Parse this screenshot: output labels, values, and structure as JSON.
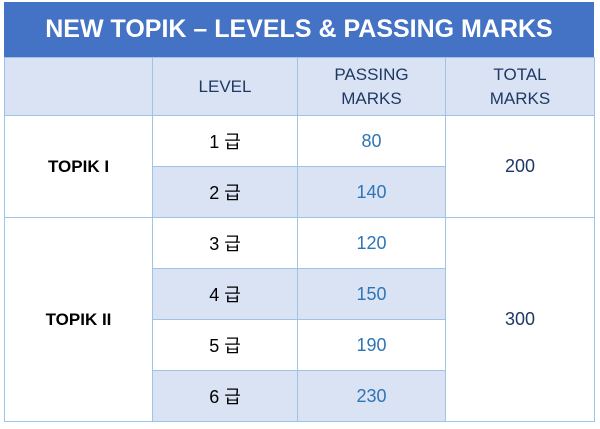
{
  "title": "NEW TOPIK – LEVELS & PASSING MARKS",
  "table": {
    "header": [
      "LEVEL",
      "PASSING MARKS",
      "TOTAL MARKS"
    ],
    "groups": [
      {
        "name": "TOPIK I",
        "total": 200,
        "levels": [
          {
            "level": "1 급",
            "marks": 80
          },
          {
            "level": "2 급",
            "marks": 140
          }
        ]
      },
      {
        "name": "TOPIK II",
        "total": 300,
        "levels": [
          {
            "level": "3 급",
            "marks": 120
          },
          {
            "level": "4 급",
            "marks": 150
          },
          {
            "level": "5 급",
            "marks": 190
          },
          {
            "level": "6 급",
            "marks": 230
          }
        ]
      }
    ]
  }
}
